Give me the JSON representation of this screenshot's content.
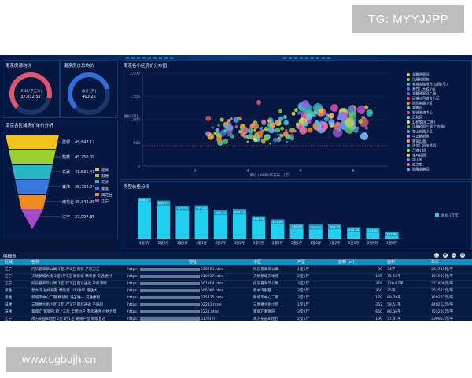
{
  "watermarks": {
    "top": "TG: MYYJJPP",
    "bottom": "www.ugbujh.cn"
  },
  "gauges": {
    "left": {
      "title": "南京房源均价",
      "unit": "(RMB/平方米)",
      "value": "37,812.52",
      "level": 0.88,
      "color": "#e0566a"
    },
    "right": {
      "title": "南京房价总均价",
      "unit": "总价 (万)",
      "value": "403.26",
      "level": 0.78,
      "color": "#2f6fd6"
    }
  },
  "funnel_panel": {
    "title": "南京各区域房价单价分析",
    "rows": [
      {
        "label": "建邺",
        "value": "45,843.12",
        "color": "#f2c318"
      },
      {
        "label": "鼓楼",
        "value": "45,750.09",
        "color": "#9bd12e"
      },
      {
        "label": "玄武",
        "value": "41,535.41",
        "color": "#25b7c8"
      },
      {
        "label": "秦淮",
        "value": "35,768.04",
        "color": "#3b78de"
      },
      {
        "label": "雨花台",
        "value": "35,342.96",
        "color": "#f28a22"
      },
      {
        "label": "江宁",
        "value": "27,997.85",
        "color": "#a44bc9"
      }
    ]
  },
  "scatter_panel": {
    "title": "南京各小区房价分布图",
    "y_ticks": [
      "2,000",
      "1,500",
      "1,000",
      "500",
      "0"
    ],
    "x_ticks": [
      "2",
      "4",
      "6",
      "8"
    ],
    "x_label": "单价 ( RMB/平方米 ) (万)",
    "y_label": "总价 (万)",
    "legend": [
      {
        "name": "金鹏翡翠园",
        "color": "#f0c419"
      },
      {
        "name": "凤凰和熙苑",
        "color": "#9bd12e"
      },
      {
        "name": "紫城金陵阳光(公园2号)",
        "color": "#25b7c8"
      },
      {
        "name": "紫竹门大名小区",
        "color": "#3b78de"
      },
      {
        "name": "金鹏翡翠园二期",
        "color": "#a44bc9"
      },
      {
        "name": "运输公司宿舍小区",
        "color": "#e0566a"
      },
      {
        "name": "熙熙南路小区",
        "color": "#f28a22"
      },
      {
        "name": "香榭园",
        "color": "#4fd2a5"
      },
      {
        "name": "新城港湾中心",
        "color": "#d94fa8"
      },
      {
        "name": "汇和园",
        "color": "#7fb7ff"
      },
      {
        "name": "汇和家园(二期)",
        "color": "#e9e25a"
      },
      {
        "name": "凤凰和熙三期(广东苑)",
        "color": "#5ac26c"
      },
      {
        "name": "泰山南路小区",
        "color": "#4aa3e8"
      },
      {
        "name": "中正路新苑",
        "color": "#c782e8"
      },
      {
        "name": "紫金山城",
        "color": "#ff8f6b"
      },
      {
        "name": "雨花门国际花园",
        "color": "#2fc4c4"
      },
      {
        "name": "丹峰小居",
        "color": "#b0d84a"
      },
      {
        "name": "金鸡花园",
        "color": "#ffae42"
      },
      {
        "name": "中山苑",
        "color": "#6b8cff"
      },
      {
        "name": "红之家",
        "color": "#ef6f8e"
      },
      {
        "name": "栖霞金鹏园",
        "color": "#44c9e2"
      }
    ]
  },
  "bar_panel": {
    "title": "房型价格分析",
    "legend": "总价 (万元)",
    "chart_data": {
      "type": "bar",
      "categories": [
        "4室3厅",
        "5室2厅",
        "3室3厅",
        "4室1厅",
        "4室2厅",
        "3室2厅",
        "3室1厅",
        "2室2厅",
        "2室1厅",
        "1室0厅",
        "1室2厅",
        "1室1厅",
        "2室0厅",
        "1室0厅"
      ],
      "values": [
        896.24,
        832.73,
        712.73,
        727.43,
        620.74,
        633.71,
        490.72,
        421.09,
        316.59,
        304.0,
        306.25,
        250.33,
        229.5,
        151.66
      ],
      "value_labels": [
        "896.24",
        "832.73",
        "712.73",
        "727.43",
        "620.74",
        "633.71",
        "490.72",
        "421.09",
        "316.59",
        "304.00",
        "306.25",
        "250.33",
        "229.50",
        "151.66"
      ],
      "ylim": [
        0,
        1000
      ],
      "color": "#1fd0ef"
    }
  },
  "table": {
    "title": "明细表",
    "controls": [
      "⛶",
      "▼",
      "⇆",
      "⊖"
    ],
    "columns": [
      "区域",
      "名称",
      "地址",
      "小区",
      "户型",
      "面积 (㎡)",
      "面积",
      "单价"
    ],
    "rows": [
      [
        "江宁",
        "托乐嘉翠华公寓 1室1厅1卫 简装 产权方正",
        "https:",
        "319783.html",
        "托乐嘉翠华公寓",
        "1室1厅",
        "90",
        "34平",
        "264715元/平"
      ],
      [
        "江宁",
        "天地新城大街 2室1厅1卫 新装修 精装修 交通便利",
        "https:",
        "610217.html",
        "天地新城天地苑",
        "2室1厅",
        "145",
        "75.56平",
        "191903元/平"
      ],
      [
        "江宁",
        "托乐嘉翠华公寓 3室2厅2卫 南北通透 产权清晰",
        "https:",
        "601804.html",
        "托乐嘉翠华公寓",
        "3室2厅",
        "378",
        "139.07平",
        "271808元/平"
      ],
      [
        "秦淮",
        "碧水湾 独栋别墅 精装修 100余平 赠送大",
        "https:",
        "606060.html",
        "碧水湾别墅",
        "3室2厅",
        "350",
        "35平",
        "352523元/平"
      ],
      [
        "秦淮",
        "新城市中心二期 精装修 满五唯一 交通便利",
        "https:",
        "575735.html",
        "新城市中心二期",
        "3室1厅",
        "170",
        "89.79平",
        "199233元/平"
      ],
      [
        "鼓楼",
        "三牌楼大街小区 1室1厅1卫 南北通透 不临街",
        "https:",
        "02231.html",
        "三牌楼大街小区",
        "1室1厅",
        "262",
        "59.51平",
        "440263元/平"
      ],
      [
        "鼓楼",
        "紫城汇 紫钢园 新上三房 全明边户 南北通透 价格合理",
        "https:",
        "2221.html",
        "紫城汇紫钢园",
        "3室2厅",
        "650",
        "86.06平",
        "755291元/平"
      ],
      [
        "江宁",
        "南方花园B组团 2室1厅1卫 朝南户型 刚需首选",
        "https:",
        "51.html",
        "南方花园B组团",
        "2室1厅",
        "190",
        "57.41平",
        "330953元/平"
      ]
    ]
  }
}
